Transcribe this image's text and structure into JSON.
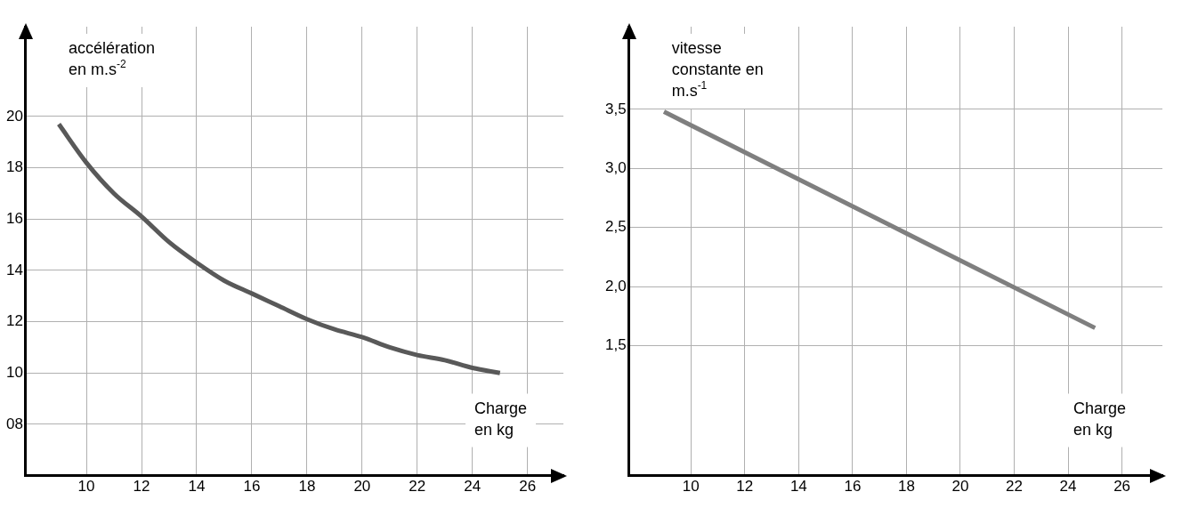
{
  "chart_data": [
    {
      "type": "line",
      "xlabel": "Charge en kg",
      "ylabel": "accélération en m.s$^{-2}$",
      "x": [
        9,
        10,
        11,
        12,
        13,
        14,
        15,
        16,
        17,
        18,
        19,
        20,
        21,
        22,
        23,
        24,
        25
      ],
      "series": [
        {
          "color": "#595959",
          "values": [
            19.7,
            18.2,
            17.0,
            16.1,
            15.1,
            14.3,
            13.6,
            13.1,
            12.6,
            12.1,
            11.7,
            11.4,
            11.0,
            10.7,
            10.5,
            10.2,
            10.0
          ]
        }
      ],
      "xlim": [
        7.8,
        27.3
      ],
      "xticks": [
        10,
        12,
        14,
        16,
        18,
        20,
        22,
        24,
        26
      ],
      "ylim": [
        6,
        23.5
      ],
      "yticks": [
        {
          "value": 8,
          "label": "08"
        },
        10,
        12,
        14,
        16,
        18,
        20
      ],
      "grid": true,
      "legend": false,
      "marker": "none",
      "line_style": "solid"
    },
    {
      "type": "line",
      "xlabel": "Charge en kg",
      "ylabel": "vitesse constante en m.s$^{-1}$",
      "x": [
        9,
        25
      ],
      "series": [
        {
          "color": "#7f7f7f",
          "values": [
            3.48,
            1.65
          ]
        }
      ],
      "xlim": [
        7.7,
        27.5
      ],
      "xticks": [
        10,
        12,
        14,
        16,
        18,
        20,
        22,
        24,
        26
      ],
      "ylim": [
        0.4,
        4.2
      ],
      "yticks": [
        {
          "value": 1.5,
          "label": "1,5"
        },
        {
          "value": 2,
          "label": "2,0"
        },
        {
          "value": 2.5,
          "label": "2,5"
        },
        {
          "value": 3,
          "label": "3,0"
        },
        {
          "value": 3.5,
          "label": "3,5"
        }
      ],
      "grid": true,
      "legend": false,
      "marker": "none",
      "line_style": "solid"
    }
  ]
}
